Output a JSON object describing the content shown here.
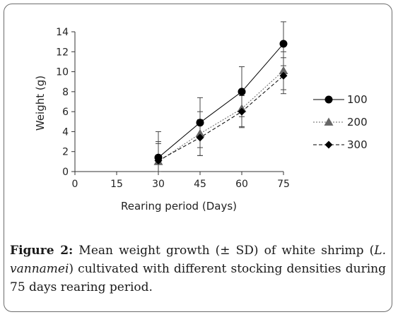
{
  "chart_data": {
    "type": "line",
    "xlabel": "Rearing period (Days)",
    "ylabel": "Weight (g)",
    "x_ticks": [
      0,
      15,
      30,
      45,
      60,
      75
    ],
    "y_ticks": [
      0,
      2,
      4,
      6,
      8,
      10,
      12,
      14
    ],
    "xlim": [
      0,
      75
    ],
    "ylim": [
      0,
      14
    ],
    "grid": false,
    "legend_position": "right",
    "x": [
      30,
      45,
      60,
      75
    ],
    "series": [
      {
        "name": "100",
        "marker": "circle",
        "line": "solid",
        "color": "#000000",
        "values": [
          1.4,
          4.9,
          8.0,
          12.8
        ],
        "error": [
          2.6,
          2.5,
          2.5,
          2.2
        ]
      },
      {
        "name": "200",
        "marker": "triangle",
        "line": "dotted",
        "color": "#666666",
        "values": [
          1.0,
          3.8,
          6.3,
          10.1
        ],
        "error": [
          2.0,
          2.2,
          1.8,
          1.9
        ]
      },
      {
        "name": "300",
        "marker": "diamond",
        "line": "dashed",
        "color": "#000000",
        "values": [
          1.1,
          3.4,
          6.0,
          9.6
        ],
        "error": [
          1.7,
          1.8,
          1.6,
          1.8
        ]
      }
    ]
  },
  "caption": {
    "label": "Figure 2:",
    "text_before": " Mean weight growth (± SD) of white shrimp (",
    "species": "L. vannamei",
    "text_after": ") cultivated with different stocking densities during 75 days rearing period."
  }
}
